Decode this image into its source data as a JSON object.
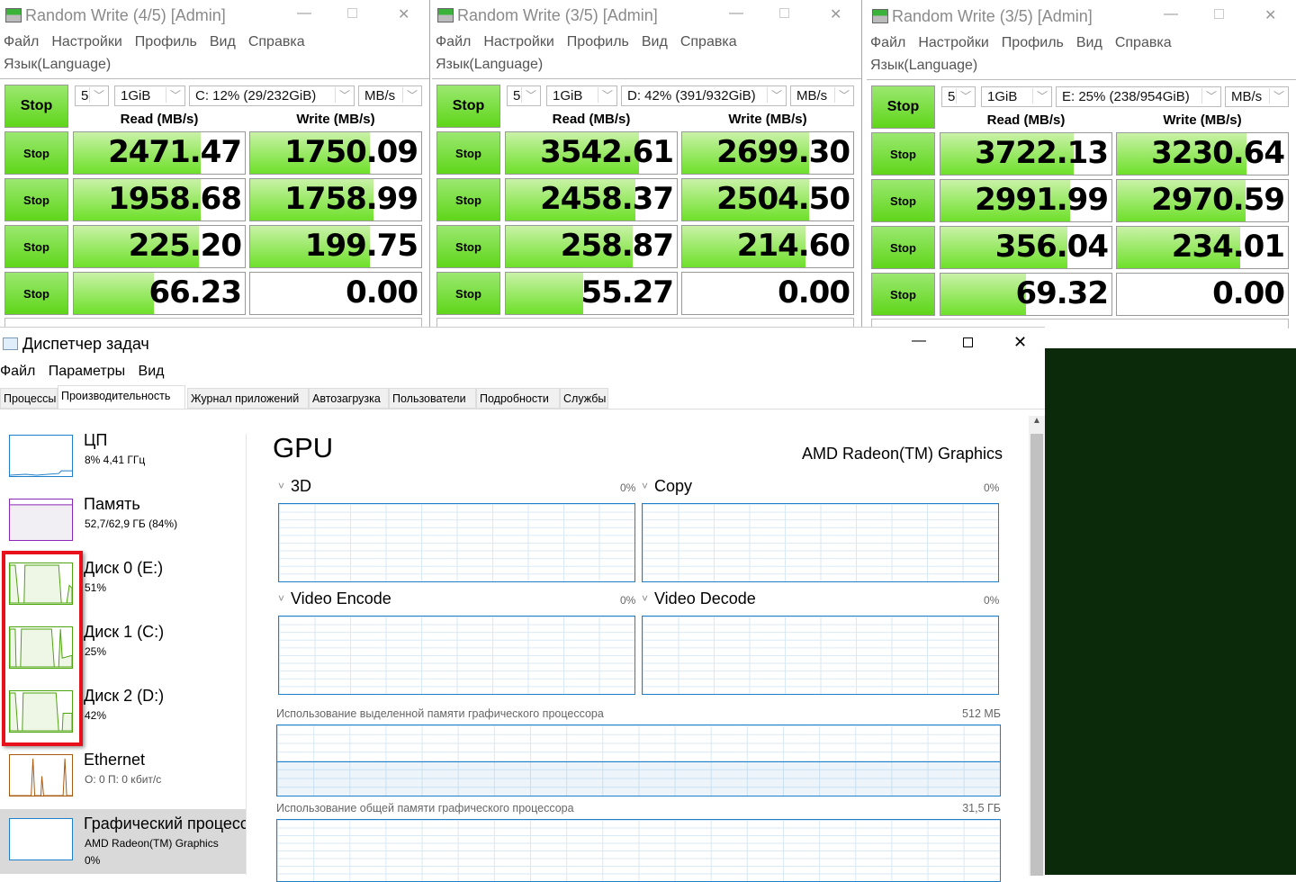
{
  "cdm_windows": [
    {
      "title": "Random Write (4/5) [Admin]",
      "menu": [
        "Файл",
        "Настройки",
        "Профиль",
        "Вид",
        "Справка"
      ],
      "language": "Язык(Language)",
      "stop_label": "Stop",
      "count": "5",
      "size": "1GiB",
      "drive": "C: 12% (29/232GiB)",
      "unit": "MB/s",
      "read_header": "Read (MB/s)",
      "write_header": "Write (MB/s)",
      "rows": [
        {
          "stop": "Stop",
          "read": "2471.47",
          "write": "1750.09",
          "read_fill": 0.74,
          "write_fill": 0.7
        },
        {
          "stop": "Stop",
          "read": "1958.68",
          "write": "1758.99",
          "read_fill": 0.74,
          "write_fill": 0.72
        },
        {
          "stop": "Stop",
          "read": "225.20",
          "write": "199.75",
          "read_fill": 0.73,
          "write_fill": 0.7
        },
        {
          "stop": "Stop",
          "read": "66.23",
          "write": "0.00",
          "read_fill": 0.47,
          "write_fill": 0
        }
      ]
    },
    {
      "title": "Random Write (3/5) [Admin]",
      "menu": [
        "Файл",
        "Настройки",
        "Профиль",
        "Вид",
        "Справка"
      ],
      "language": "Язык(Language)",
      "stop_label": "Stop",
      "count": "5",
      "size": "1GiB",
      "drive": "D: 42% (391/932GiB)",
      "unit": "MB/s",
      "read_header": "Read (MB/s)",
      "write_header": "Write (MB/s)",
      "rows": [
        {
          "stop": "Stop",
          "read": "3542.61",
          "write": "2699.30",
          "read_fill": 0.78,
          "write_fill": 0.74
        },
        {
          "stop": "Stop",
          "read": "2458.37",
          "write": "2504.50",
          "read_fill": 0.76,
          "write_fill": 0.74
        },
        {
          "stop": "Stop",
          "read": "258.87",
          "write": "214.60",
          "read_fill": 0.74,
          "write_fill": 0.72
        },
        {
          "stop": "Stop",
          "read": "55.27",
          "write": "0.00",
          "read_fill": 0.45,
          "write_fill": 0
        }
      ]
    },
    {
      "title": "Random Write (3/5) [Admin]",
      "menu": [
        "Файл",
        "Настройки",
        "Профиль",
        "Вид",
        "Справка"
      ],
      "language": "Язык(Language)",
      "stop_label": "Stop",
      "count": "5",
      "size": "1GiB",
      "drive": "E: 25% (238/954GiB)",
      "unit": "MB/s",
      "read_header": "Read (MB/s)",
      "write_header": "Write (MB/s)",
      "rows": [
        {
          "stop": "Stop",
          "read": "3722.13",
          "write": "3230.64",
          "read_fill": 0.78,
          "write_fill": 0.76
        },
        {
          "stop": "Stop",
          "read": "2991.99",
          "write": "2970.59",
          "read_fill": 0.76,
          "write_fill": 0.75
        },
        {
          "stop": "Stop",
          "read": "356.04",
          "write": "234.01",
          "read_fill": 0.74,
          "write_fill": 0.72
        },
        {
          "stop": "Stop",
          "read": "69.32",
          "write": "0.00",
          "read_fill": 0.5,
          "write_fill": 0
        }
      ]
    }
  ],
  "task_manager": {
    "title": "Диспетчер задач",
    "menu": [
      "Файл",
      "Параметры",
      "Вид"
    ],
    "tabs": [
      "Процессы",
      "Производительность",
      "Журнал приложений",
      "Автозагрузка",
      "Пользователи",
      "Подробности",
      "Службы"
    ],
    "active_tab": "Производительность",
    "sidebar": [
      {
        "name": "ЦП",
        "sub": "8%  4,41 ГГц",
        "color": "#1f7fc8"
      },
      {
        "name": "Память",
        "sub": "52,7/62,9 ГБ (84%)",
        "color": "#8b28b5"
      },
      {
        "name": "Диск 0 (E:)",
        "sub": "51%",
        "color": "#4ca40e"
      },
      {
        "name": "Диск 1 (C:)",
        "sub": "25%",
        "color": "#4ca40e"
      },
      {
        "name": "Диск 2 (D:)",
        "sub": "42%",
        "color": "#4ca40e"
      },
      {
        "name": "Ethernet",
        "sub": "О: 0 П: 0 кбит/с",
        "color": "#a75a12"
      },
      {
        "name": "Графический процессор",
        "sub": "AMD Radeon(TM) Graphics",
        "sub2": "0%",
        "color": "#1f7fc8",
        "selected": true
      }
    ],
    "gpu": {
      "title": "GPU",
      "device": "AMD Radeon(TM) Graphics",
      "engines": [
        {
          "label": "3D",
          "pct": "0%"
        },
        {
          "label": "Copy",
          "pct": "0%"
        },
        {
          "label": "Video Encode",
          "pct": "0%"
        },
        {
          "label": "Video Decode",
          "pct": "0%"
        }
      ],
      "dedicated_label": "Использование выделенной памяти графического процессора",
      "dedicated_max": "512 МБ",
      "shared_label": "Использование общей памяти графического процессора",
      "shared_max": "31,5 ГБ"
    }
  },
  "highlight_color": "#e8101a",
  "desktop_color": "#0a2a0a"
}
